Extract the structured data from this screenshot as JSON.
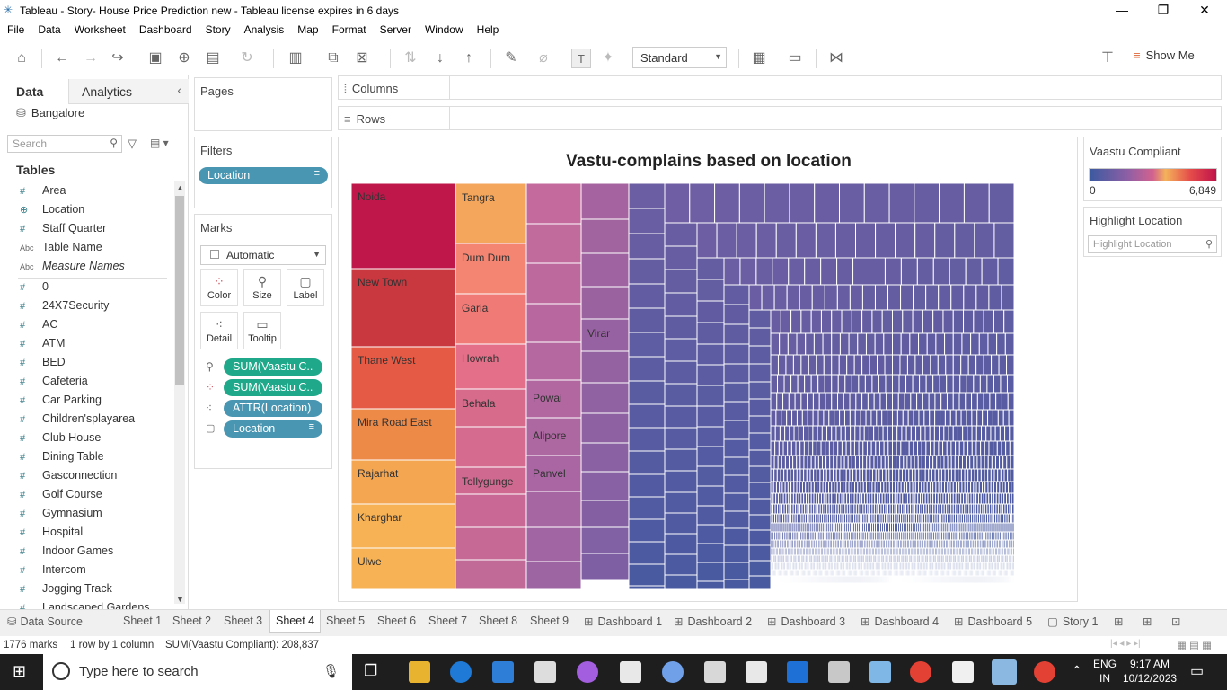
{
  "window": {
    "title": "Tableau - Story- House Price Prediction new - Tableau license expires in 6 days"
  },
  "menu": [
    "File",
    "Data",
    "Worksheet",
    "Dashboard",
    "Story",
    "Analysis",
    "Map",
    "Format",
    "Server",
    "Window",
    "Help"
  ],
  "toolbar": {
    "fit_select": "Standard",
    "show_me": "Show Me"
  },
  "left_pane": {
    "tabs": {
      "data": "Data",
      "analytics": "Analytics"
    },
    "datasource": "Bangalore",
    "search_placeholder": "Search",
    "tables_heading": "Tables",
    "fields": [
      {
        "type": "num",
        "name": "Area"
      },
      {
        "type": "geo",
        "name": "Location"
      },
      {
        "type": "num",
        "name": "Staff Quarter"
      },
      {
        "type": "abc",
        "name": "Table Name"
      },
      {
        "type": "abc",
        "name": "Measure Names"
      },
      {
        "type": "num",
        "name": "0"
      },
      {
        "type": "num",
        "name": "24X7Security"
      },
      {
        "type": "num",
        "name": "AC"
      },
      {
        "type": "num",
        "name": "ATM"
      },
      {
        "type": "num",
        "name": "BED"
      },
      {
        "type": "num",
        "name": "Cafeteria"
      },
      {
        "type": "num",
        "name": "Car Parking"
      },
      {
        "type": "num",
        "name": "Children'splayarea"
      },
      {
        "type": "num",
        "name": "Club House"
      },
      {
        "type": "num",
        "name": "Dining Table"
      },
      {
        "type": "num",
        "name": "Gasconnection"
      },
      {
        "type": "num",
        "name": "Golf Course"
      },
      {
        "type": "num",
        "name": "Gymnasium"
      },
      {
        "type": "num",
        "name": "Hospital"
      },
      {
        "type": "num",
        "name": "Indoor Games"
      },
      {
        "type": "num",
        "name": "Intercom"
      },
      {
        "type": "num",
        "name": "Jogging Track"
      },
      {
        "type": "num",
        "name": "Landscaped Gardens"
      }
    ]
  },
  "pages": {
    "title": "Pages"
  },
  "filters": {
    "title": "Filters",
    "pill": "Location"
  },
  "marks": {
    "title": "Marks",
    "type": "Automatic",
    "buttons": [
      "Color",
      "Size",
      "Label",
      "Detail",
      "Tooltip"
    ],
    "pills": [
      "SUM(Vaastu C..",
      "SUM(Vaastu C..",
      "ATTR(Location)",
      "Location"
    ]
  },
  "shelves": {
    "columns": "Columns",
    "rows": "Rows"
  },
  "viz": {
    "title": "Vastu-complains based on location"
  },
  "chart_data": {
    "type": "treemap",
    "title": "Vastu-complains based on location",
    "measure": "SUM(Vaastu Compliant)",
    "labeled_cells": [
      "Noida",
      "New Town",
      "Thane West",
      "Mira Road East",
      "Rajarhat",
      "Kharghar",
      "Ulwe",
      "Tangra",
      "Dum Dum",
      "Garia",
      "Howrah",
      "Behala",
      "Tollygunge",
      "Powai",
      "Alipore",
      "Panvel",
      "Virar"
    ],
    "color_range": [
      0,
      6849
    ]
  },
  "legend": {
    "title": "Vaastu Compliant",
    "min": "0",
    "max": "6,849"
  },
  "highlight": {
    "title": "Highlight Location",
    "placeholder": "Highlight Location"
  },
  "sheet_tabs": [
    "Data Source",
    "Sheet 1",
    "Sheet 2",
    "Sheet 3",
    "Sheet 4",
    "Sheet 5",
    "Sheet 6",
    "Sheet 7",
    "Sheet 8",
    "Sheet 9",
    "Dashboard 1",
    "Dashboard 2",
    "Dashboard 3",
    "Dashboard 4",
    "Dashboard 5",
    "Story 1"
  ],
  "status": {
    "marks": "1776 marks",
    "rows": "1 row by 1 column",
    "sum": "SUM(Vaastu Compliant): 208,837"
  },
  "taskbar": {
    "search": "Type here to search",
    "lang1": "ENG",
    "lang2": "IN",
    "time": "9:17 AM",
    "date": "10/12/2023"
  }
}
